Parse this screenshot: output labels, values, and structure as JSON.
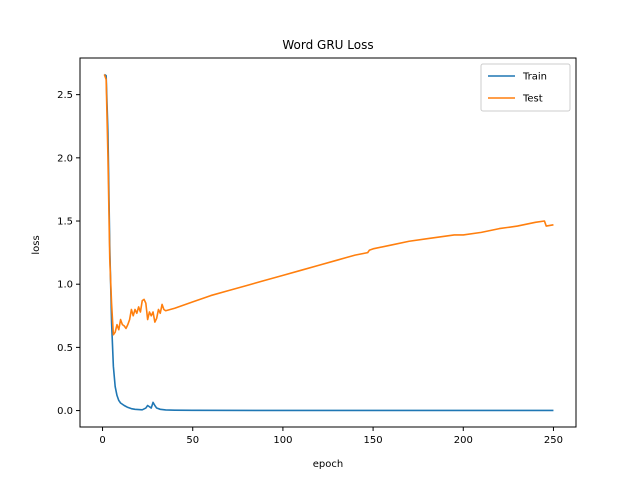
{
  "chart_data": {
    "type": "line",
    "title": "Word GRU Loss",
    "xlabel": "epoch",
    "ylabel": "loss",
    "xlim": [
      -12.5,
      262.5
    ],
    "ylim": [
      -0.13,
      2.79
    ],
    "xticks": [
      0,
      50,
      100,
      150,
      200,
      250
    ],
    "yticks": [
      0.0,
      0.5,
      1.0,
      1.5,
      2.0,
      2.5
    ],
    "xtick_labels": [
      "0",
      "50",
      "100",
      "150",
      "200",
      "250"
    ],
    "ytick_labels": [
      "0.0",
      "0.5",
      "1.0",
      "1.5",
      "2.0",
      "2.5"
    ],
    "grid": false,
    "legend_position": "top-right",
    "series": [
      {
        "name": "Train",
        "color": "#1f77b4",
        "points": [
          [
            1,
            2.66
          ],
          [
            2,
            2.65
          ],
          [
            3,
            2.2
          ],
          [
            4,
            1.3
          ],
          [
            5,
            0.7
          ],
          [
            6,
            0.35
          ],
          [
            7,
            0.19
          ],
          [
            8,
            0.12
          ],
          [
            9,
            0.08
          ],
          [
            10,
            0.06
          ],
          [
            12,
            0.04
          ],
          [
            14,
            0.025
          ],
          [
            16,
            0.015
          ],
          [
            18,
            0.01
          ],
          [
            20,
            0.008
          ],
          [
            22,
            0.006
          ],
          [
            24,
            0.02
          ],
          [
            25,
            0.04
          ],
          [
            26,
            0.03
          ],
          [
            27,
            0.02
          ],
          [
            28,
            0.065
          ],
          [
            29,
            0.04
          ],
          [
            30,
            0.02
          ],
          [
            32,
            0.01
          ],
          [
            35,
            0.005
          ],
          [
            40,
            0.003
          ],
          [
            50,
            0.002
          ],
          [
            100,
            0.001
          ],
          [
            150,
            0.001
          ],
          [
            200,
            0.001
          ],
          [
            250,
            0.001
          ]
        ]
      },
      {
        "name": "Test",
        "color": "#ff7f0e",
        "points": [
          [
            1,
            2.66
          ],
          [
            2,
            2.62
          ],
          [
            3,
            2.0
          ],
          [
            4,
            1.2
          ],
          [
            5,
            0.85
          ],
          [
            6,
            0.6
          ],
          [
            7,
            0.62
          ],
          [
            8,
            0.68
          ],
          [
            9,
            0.64
          ],
          [
            10,
            0.72
          ],
          [
            11,
            0.68
          ],
          [
            12,
            0.67
          ],
          [
            13,
            0.65
          ],
          [
            14,
            0.68
          ],
          [
            15,
            0.72
          ],
          [
            16,
            0.8
          ],
          [
            17,
            0.75
          ],
          [
            18,
            0.8
          ],
          [
            19,
            0.77
          ],
          [
            20,
            0.82
          ],
          [
            21,
            0.78
          ],
          [
            22,
            0.87
          ],
          [
            23,
            0.88
          ],
          [
            24,
            0.85
          ],
          [
            25,
            0.72
          ],
          [
            26,
            0.78
          ],
          [
            27,
            0.75
          ],
          [
            28,
            0.78
          ],
          [
            29,
            0.7
          ],
          [
            30,
            0.73
          ],
          [
            31,
            0.8
          ],
          [
            32,
            0.77
          ],
          [
            33,
            0.84
          ],
          [
            34,
            0.8
          ],
          [
            35,
            0.79
          ],
          [
            40,
            0.81
          ],
          [
            50,
            0.86
          ],
          [
            60,
            0.91
          ],
          [
            70,
            0.95
          ],
          [
            80,
            0.99
          ],
          [
            90,
            1.03
          ],
          [
            100,
            1.07
          ],
          [
            110,
            1.11
          ],
          [
            120,
            1.15
          ],
          [
            130,
            1.19
          ],
          [
            135,
            1.21
          ],
          [
            140,
            1.23
          ],
          [
            147,
            1.25
          ],
          [
            148,
            1.27
          ],
          [
            150,
            1.28
          ],
          [
            160,
            1.31
          ],
          [
            170,
            1.34
          ],
          [
            180,
            1.36
          ],
          [
            195,
            1.39
          ],
          [
            200,
            1.39
          ],
          [
            210,
            1.41
          ],
          [
            220,
            1.44
          ],
          [
            230,
            1.46
          ],
          [
            240,
            1.49
          ],
          [
            245,
            1.5
          ],
          [
            246,
            1.46
          ],
          [
            250,
            1.47
          ]
        ]
      }
    ]
  }
}
